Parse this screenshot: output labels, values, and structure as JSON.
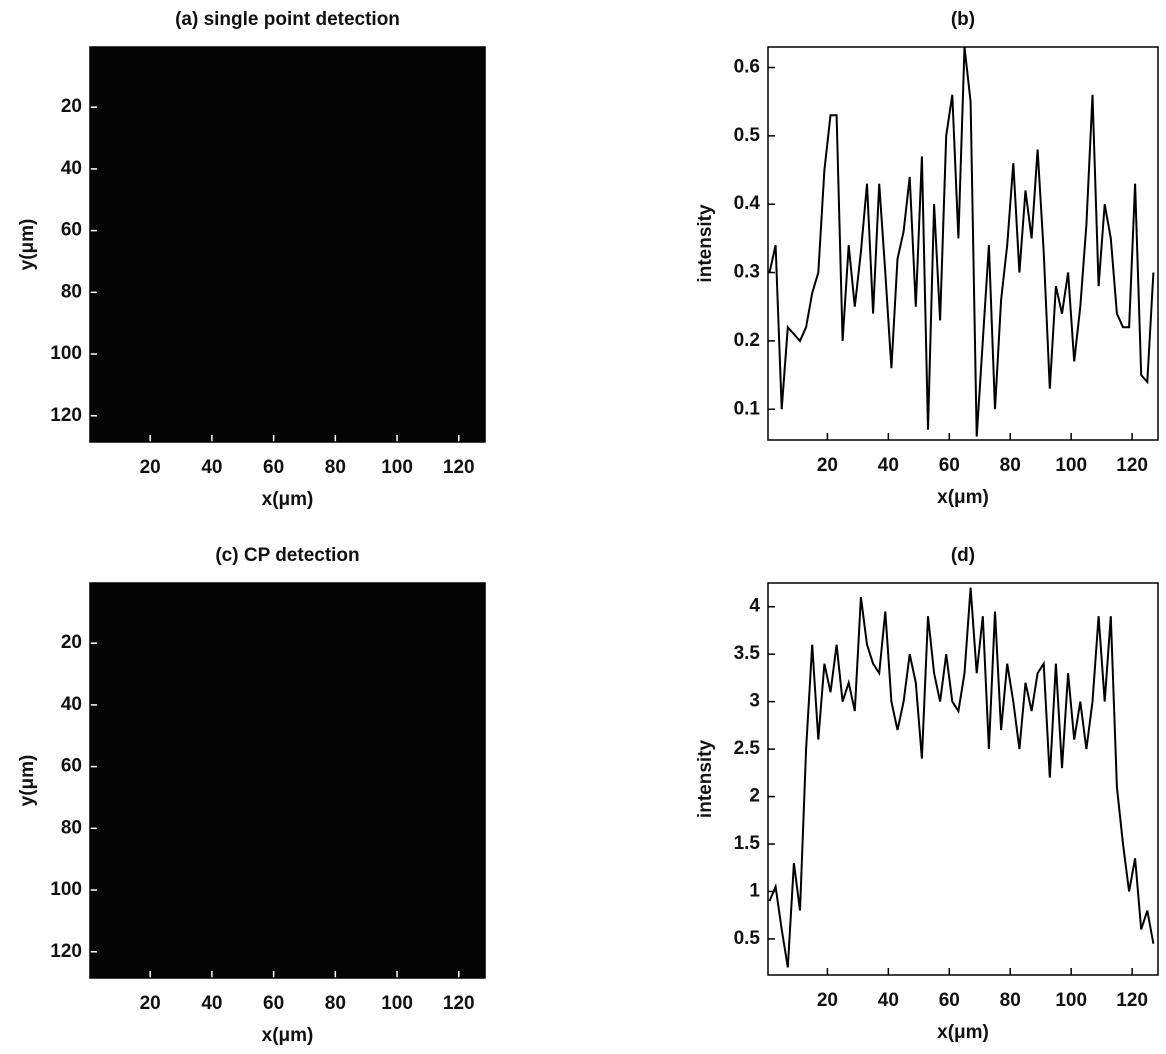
{
  "chart_data": [
    {
      "type": "image",
      "title": "(a) single point detection",
      "xlabel": "x(μm)",
      "ylabel": "y(μm)",
      "xlim": [
        0.5,
        128.5
      ],
      "ylim": [
        128.5,
        0.5
      ],
      "xticks": [
        20,
        40,
        60,
        80,
        100,
        120
      ],
      "yticks": [
        20,
        40,
        60,
        80,
        100,
        120
      ],
      "color": "#050505"
    },
    {
      "type": "line",
      "title": "(b)",
      "xlabel": "x(μm)",
      "ylabel": "intensity",
      "xlim": [
        0.5,
        128.5
      ],
      "ylim": [
        0.055,
        0.63
      ],
      "xticks": [
        20,
        40,
        60,
        80,
        100,
        120
      ],
      "yticks": [
        0.1,
        0.2,
        0.3,
        0.4,
        0.5,
        0.6
      ],
      "color": "#000000",
      "x": [
        1,
        3,
        5,
        7,
        9,
        11,
        13,
        15,
        17,
        19,
        21,
        23,
        25,
        27,
        29,
        31,
        33,
        35,
        37,
        39,
        41,
        43,
        45,
        47,
        49,
        51,
        53,
        55,
        57,
        59,
        61,
        63,
        65,
        67,
        69,
        71,
        73,
        75,
        77,
        79,
        81,
        83,
        85,
        87,
        89,
        91,
        93,
        95,
        97,
        99,
        101,
        103,
        105,
        107,
        109,
        111,
        113,
        115,
        117,
        119,
        121,
        123,
        125,
        127
      ],
      "values": [
        0.3,
        0.34,
        0.1,
        0.22,
        0.21,
        0.2,
        0.22,
        0.27,
        0.3,
        0.45,
        0.53,
        0.53,
        0.2,
        0.34,
        0.25,
        0.33,
        0.43,
        0.24,
        0.43,
        0.3,
        0.16,
        0.32,
        0.36,
        0.44,
        0.25,
        0.47,
        0.07,
        0.4,
        0.23,
        0.5,
        0.56,
        0.35,
        0.63,
        0.55,
        0.06,
        0.2,
        0.34,
        0.1,
        0.26,
        0.34,
        0.46,
        0.3,
        0.42,
        0.35,
        0.48,
        0.33,
        0.13,
        0.28,
        0.24,
        0.3,
        0.17,
        0.25,
        0.37,
        0.56,
        0.28,
        0.4,
        0.35,
        0.24,
        0.22,
        0.22,
        0.43,
        0.15,
        0.14,
        0.3
      ]
    },
    {
      "type": "image",
      "title": "(c) CP detection",
      "xlabel": "x(μm)",
      "ylabel": "y(μm)",
      "xlim": [
        0.5,
        128.5
      ],
      "ylim": [
        128.5,
        0.5
      ],
      "xticks": [
        20,
        40,
        60,
        80,
        100,
        120
      ],
      "yticks": [
        20,
        40,
        60,
        80,
        100,
        120
      ],
      "color": "#050505"
    },
    {
      "type": "line",
      "title": "(d)",
      "xlabel": "x(μm)",
      "ylabel": "intensity",
      "xlim": [
        0.5,
        128.5
      ],
      "ylim": [
        0.12,
        4.25
      ],
      "xticks": [
        20,
        40,
        60,
        80,
        100,
        120
      ],
      "yticks": [
        0.5,
        1,
        1.5,
        2,
        2.5,
        3,
        3.5,
        4
      ],
      "color": "#000000",
      "x": [
        1,
        3,
        5,
        7,
        9,
        11,
        13,
        15,
        17,
        19,
        21,
        23,
        25,
        27,
        29,
        31,
        33,
        35,
        37,
        39,
        41,
        43,
        45,
        47,
        49,
        51,
        53,
        55,
        57,
        59,
        61,
        63,
        65,
        67,
        69,
        71,
        73,
        75,
        77,
        79,
        81,
        83,
        85,
        87,
        89,
        91,
        93,
        95,
        97,
        99,
        101,
        103,
        105,
        107,
        109,
        111,
        113,
        115,
        117,
        119,
        121,
        123,
        125,
        127
      ],
      "values": [
        0.9,
        1.05,
        0.6,
        0.2,
        1.3,
        0.8,
        2.5,
        3.6,
        2.6,
        3.4,
        3.1,
        3.6,
        3.0,
        3.2,
        2.9,
        4.1,
        3.6,
        3.4,
        3.3,
        3.95,
        3.0,
        2.7,
        3.0,
        3.5,
        3.2,
        2.4,
        3.9,
        3.3,
        3.0,
        3.5,
        3.0,
        2.9,
        3.3,
        4.2,
        3.3,
        3.9,
        2.5,
        3.95,
        2.7,
        3.4,
        3.0,
        2.5,
        3.2,
        2.9,
        3.3,
        3.4,
        2.2,
        3.4,
        2.3,
        3.3,
        2.6,
        3.0,
        2.5,
        3.0,
        3.9,
        3.0,
        3.9,
        2.1,
        1.5,
        1.0,
        1.35,
        0.6,
        0.8,
        0.45
      ]
    }
  ]
}
